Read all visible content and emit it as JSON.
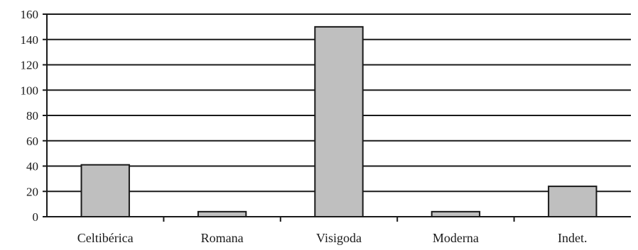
{
  "chart_data": {
    "type": "bar",
    "categories": [
      "Celtibérica",
      "Romana",
      "Visigoda",
      "Moderna",
      "Indet."
    ],
    "values": [
      41,
      4,
      150,
      4,
      24
    ],
    "ylim": [
      0,
      160
    ],
    "yticks": [
      0,
      20,
      40,
      60,
      80,
      100,
      120,
      140,
      160
    ],
    "grid": true,
    "legend": "none",
    "bar_color": "#bfbfbf",
    "bar_edge_color": "#1a1a1a",
    "grid_color": "#1a1a1a"
  }
}
